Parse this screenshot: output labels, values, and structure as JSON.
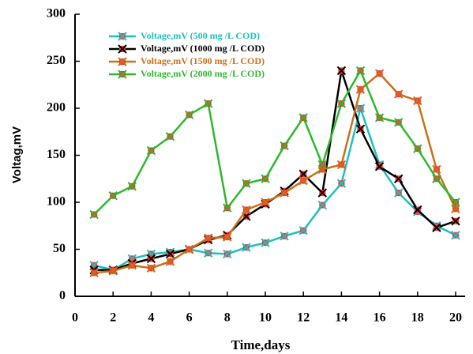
{
  "chart_data": {
    "type": "line",
    "x_label": "Time,days",
    "y_label": "Voltag,mV",
    "x": [
      1,
      2,
      3,
      4,
      5,
      6,
      7,
      8,
      9,
      10,
      11,
      12,
      13,
      14,
      15,
      16,
      17,
      18,
      19,
      20
    ],
    "series": [
      {
        "name": "Voltage,mV (500 mg /L COD)",
        "color": "#1fbfbf",
        "values": [
          33,
          28,
          40,
          45,
          47,
          50,
          46,
          45,
          52,
          57,
          64,
          70,
          97,
          120,
          200,
          140,
          110,
          90,
          75,
          65
        ]
      },
      {
        "name": "Voltage,mV (1000 mg /L COD)",
        "color": "#000000",
        "values": [
          28,
          28,
          35,
          40,
          45,
          50,
          60,
          65,
          85,
          98,
          112,
          130,
          110,
          240,
          178,
          138,
          125,
          92,
          73,
          80
        ]
      },
      {
        "name": "Voltage,mV (1500 mg /L COD)",
        "color": "#c8701a",
        "values": [
          25,
          27,
          33,
          30,
          37,
          50,
          62,
          63,
          92,
          100,
          110,
          123,
          135,
          140,
          220,
          237,
          215,
          208,
          135,
          93
        ]
      },
      {
        "name": "Voltage,mV (2000 mg /L COD)",
        "color": "#2eb82e",
        "values": [
          87,
          107,
          117,
          155,
          170,
          193,
          205,
          94,
          120,
          125,
          160,
          190,
          140,
          205,
          240,
          190,
          185,
          157,
          125,
          100
        ]
      }
    ],
    "marker_color": "#ff3333",
    "xlim": [
      0,
      20.5
    ],
    "xticks": [
      0,
      2,
      4,
      6,
      8,
      10,
      12,
      14,
      16,
      18,
      20
    ],
    "ylim": [
      0,
      300
    ],
    "yticks": [
      0,
      50,
      100,
      150,
      200,
      250,
      300
    ]
  }
}
